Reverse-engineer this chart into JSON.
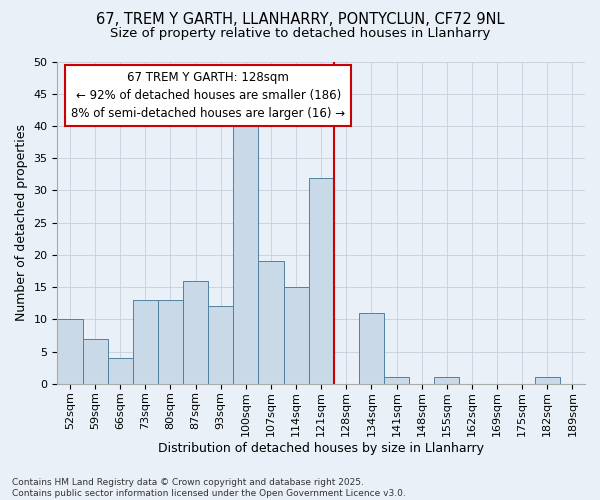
{
  "title_line1": "67, TREM Y GARTH, LLANHARRY, PONTYCLUN, CF72 9NL",
  "title_line2": "Size of property relative to detached houses in Llanharry",
  "xlabel": "Distribution of detached houses by size in Llanharry",
  "ylabel": "Number of detached properties",
  "categories": [
    "52sqm",
    "59sqm",
    "66sqm",
    "73sqm",
    "80sqm",
    "87sqm",
    "93sqm",
    "100sqm",
    "107sqm",
    "114sqm",
    "121sqm",
    "128sqm",
    "134sqm",
    "141sqm",
    "148sqm",
    "155sqm",
    "162sqm",
    "169sqm",
    "175sqm",
    "182sqm",
    "189sqm"
  ],
  "values": [
    10,
    7,
    4,
    13,
    13,
    16,
    12,
    40,
    19,
    15,
    32,
    0,
    11,
    1,
    0,
    1,
    0,
    0,
    0,
    1,
    0
  ],
  "bar_color": "#cad9e8",
  "bar_edge_color": "#4f82a0",
  "vline_color": "#cc0000",
  "vline_x_index": 11,
  "annotation_text_line1": "67 TREM Y GARTH: 128sqm",
  "annotation_text_line2": "← 92% of detached houses are smaller (186)",
  "annotation_text_line3": "8% of semi-detached houses are larger (16) →",
  "annotation_box_facecolor": "#ffffff",
  "annotation_box_edgecolor": "#cc0000",
  "ylim": [
    0,
    50
  ],
  "yticks": [
    0,
    5,
    10,
    15,
    20,
    25,
    30,
    35,
    40,
    45,
    50
  ],
  "background_color": "#eaf0f8",
  "grid_color": "#c5cfdc",
  "footer_text": "Contains HM Land Registry data © Crown copyright and database right 2025.\nContains public sector information licensed under the Open Government Licence v3.0.",
  "title_fontsize": 10.5,
  "subtitle_fontsize": 9.5,
  "axis_label_fontsize": 9,
  "tick_fontsize": 8,
  "annotation_fontsize": 8.5,
  "footer_fontsize": 6.5
}
